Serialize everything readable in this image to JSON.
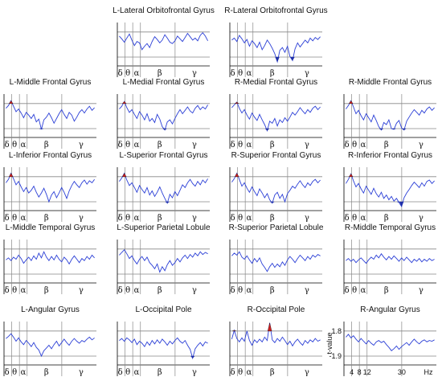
{
  "chart_data": {
    "type": "line",
    "band_labels": [
      "δ",
      "θ",
      "α",
      "β",
      "γ"
    ],
    "bands": [
      {
        "symbol": "δ",
        "x": 1.5
      },
      {
        "symbol": "θ",
        "x": 5.5
      },
      {
        "symbol": "α",
        "x": 10
      },
      {
        "symbol": "β",
        "x": 22
      },
      {
        "symbol": "γ",
        "x": 40
      }
    ],
    "band_boundaries_hz": [
      4,
      8,
      12,
      30
    ],
    "x_unit": "Hz",
    "xlim": [
      0,
      48
    ],
    "ylim": [
      -3.2,
      3.2
    ],
    "reference_lines": [
      1.8,
      -1.9
    ],
    "ylabel": "t-value",
    "ytick_labels": [
      "1.8",
      "-1.9"
    ],
    "xtick_labels": [
      "4",
      "8",
      "12",
      "30",
      "Hz"
    ],
    "colors": {
      "trace": "#2b3fd6",
      "positive": "#cc1f1f",
      "negative": "#1f2fa8",
      "grid": "#888888",
      "frame": "#000000"
    },
    "panels": [
      {
        "id": "l-lat-ofg",
        "title": "L-Lateral Orbitofrontal Gyrus",
        "values": [
          1.2,
          0.8,
          0.3,
          0.9,
          1.5,
          0.6,
          -0.2,
          0.4,
          0.2,
          -0.8,
          -0.3,
          0.1,
          -0.5,
          0.4,
          1.1,
          0.7,
          0.2,
          0.6,
          1.4,
          0.9,
          0.3,
          0.1,
          0.5,
          1.2,
          0.8,
          0.4,
          1.0,
          1.6,
          1.1,
          0.6,
          0.9,
          0.5,
          1.3,
          1.7,
          1.2,
          0.5
        ]
      },
      {
        "id": "r-lat-ofg",
        "title": "R-Lateral Orbitofrontal Gyrus",
        "values": [
          0.6,
          0.9,
          0.4,
          1.3,
          0.8,
          0.2,
          0.7,
          -0.3,
          0.5,
          0.1,
          -0.5,
          0.3,
          -0.8,
          -0.2,
          0.6,
          0.1,
          -0.6,
          -1.4,
          -2.6,
          -0.9,
          -0.5,
          -1.2,
          -0.3,
          -1.8,
          -2.4,
          -0.7,
          0.2,
          -0.4,
          0.1,
          0.6,
          0.2,
          0.9,
          0.5,
          1.0,
          0.7,
          1.1
        ]
      },
      {
        "id": "l-mid-fg",
        "title": "L-Middle Frontal Gyrus",
        "values": [
          1.1,
          1.5,
          2.2,
          1.4,
          0.6,
          1.0,
          0.4,
          -0.3,
          0.5,
          0.1,
          -0.4,
          0.2,
          -0.9,
          -0.5,
          -2.0,
          -0.6,
          -0.2,
          0.4,
          -0.3,
          -1.1,
          -0.4,
          0.3,
          0.9,
          0.2,
          -0.4,
          0.5,
          0.1,
          -0.8,
          -0.2,
          0.5,
          0.9,
          0.4,
          1.0,
          1.4,
          0.8,
          1.2
        ]
      },
      {
        "id": "l-med-fg",
        "title": "L-Medial Frontal Gyrus",
        "values": [
          1.0,
          1.4,
          2.1,
          1.2,
          0.5,
          0.9,
          0.2,
          -0.4,
          0.6,
          0.1,
          -0.6,
          0.3,
          -0.8,
          -0.4,
          -1.0,
          0.2,
          -0.5,
          -1.6,
          -2.1,
          -0.9,
          -0.6,
          -1.2,
          -0.4,
          0.3,
          0.9,
          0.3,
          0.8,
          1.3,
          0.7,
          0.4,
          1.1,
          1.5,
          0.9,
          1.3,
          1.0,
          1.6
        ]
      },
      {
        "id": "r-med-fg",
        "title": "R-Medial Frontal Gyrus",
        "values": [
          1.2,
          1.6,
          2.0,
          1.1,
          0.4,
          0.9,
          0.1,
          -0.5,
          0.4,
          -0.2,
          -0.7,
          0.2,
          -0.6,
          -1.3,
          -2.2,
          -0.8,
          -1.1,
          -0.4,
          -1.5,
          -0.6,
          -1.0,
          -0.3,
          -0.8,
          -0.2,
          0.5,
          0.1,
          0.6,
          1.2,
          0.7,
          0.3,
          0.9,
          0.5,
          1.1,
          1.4,
          0.9,
          1.3
        ]
      },
      {
        "id": "r-mid-fg",
        "title": "R-Middle Frontal Gyrus",
        "values": [
          1.0,
          1.5,
          2.2,
          1.3,
          0.3,
          0.8,
          0.0,
          -0.6,
          0.3,
          -0.3,
          -0.9,
          0.1,
          -0.7,
          -1.6,
          -2.1,
          -1.0,
          -1.3,
          -0.6,
          -1.9,
          -2.0,
          -1.1,
          -0.7,
          -1.8,
          -2.1,
          -0.8,
          -0.2,
          0.4,
          0.9,
          0.5,
          0.1,
          0.8,
          0.4,
          1.0,
          1.3,
          0.8,
          1.2
        ]
      },
      {
        "id": "l-inf-fg",
        "title": "L-Inferior Frontal Gyrus",
        "values": [
          0.9,
          1.4,
          2.3,
          1.5,
          0.6,
          1.1,
          0.3,
          -0.4,
          0.2,
          -0.6,
          -0.2,
          0.4,
          -0.5,
          -1.2,
          -0.6,
          0.1,
          -0.8,
          -1.9,
          -0.9,
          -0.4,
          -1.3,
          -0.6,
          0.2,
          -0.5,
          -1.4,
          -0.3,
          0.5,
          1.1,
          0.6,
          0.2,
          0.9,
          1.3,
          0.7,
          1.2,
          0.9,
          1.4
        ]
      },
      {
        "id": "l-sup-fg",
        "title": "L-Superior Frontal Gyrus",
        "values": [
          1.1,
          1.6,
          2.3,
          1.3,
          0.5,
          0.9,
          0.2,
          -0.5,
          0.5,
          -0.1,
          -0.6,
          0.2,
          -0.9,
          -0.3,
          -1.1,
          -0.5,
          0.3,
          -0.6,
          -1.4,
          -2.1,
          -0.8,
          -1.3,
          -0.4,
          -1.0,
          -0.2,
          0.6,
          0.2,
          0.9,
          1.4,
          0.8,
          0.4,
          1.1,
          0.6,
          1.3,
          0.9,
          1.5
        ]
      },
      {
        "id": "r-sup-fg",
        "title": "R-Superior Frontal Gyrus",
        "values": [
          1.0,
          1.5,
          2.3,
          1.4,
          0.4,
          0.9,
          0.1,
          -0.5,
          0.3,
          -0.4,
          -1.0,
          0.0,
          -0.6,
          -1.3,
          -0.7,
          -1.6,
          -2.1,
          -0.9,
          -0.5,
          -1.4,
          -0.8,
          -1.9,
          -0.7,
          -0.2,
          0.4,
          0.1,
          0.7,
          1.2,
          0.6,
          0.2,
          0.9,
          0.5,
          1.1,
          1.4,
          0.9,
          1.3
        ]
      },
      {
        "id": "r-inf-fg",
        "title": "R-Inferior Frontal Gyrus",
        "values": [
          0.8,
          1.4,
          2.2,
          1.2,
          0.3,
          0.8,
          0.0,
          -0.6,
          0.4,
          -0.2,
          -0.8,
          0.1,
          -0.7,
          -1.2,
          -0.5,
          -1.4,
          -0.9,
          -1.6,
          -1.1,
          -1.8,
          -1.4,
          -2.0,
          -2.6,
          -1.3,
          -0.6,
          -0.1,
          0.5,
          1.0,
          0.6,
          0.2,
          0.9,
          0.4,
          1.1,
          1.3,
          0.8,
          1.2
        ]
      },
      {
        "id": "l-mid-tg",
        "title": "L-Middle Temporal Gyrus",
        "values": [
          0.2,
          0.5,
          0.1,
          0.6,
          0.3,
          0.9,
          0.4,
          -0.3,
          0.2,
          0.6,
          0.1,
          0.8,
          0.3,
          1.2,
          0.5,
          1.4,
          0.6,
          0.1,
          0.7,
          0.2,
          0.9,
          0.3,
          -0.1,
          0.6,
          0.2,
          -0.4,
          0.3,
          0.8,
          0.3,
          -0.2,
          0.4,
          0.1,
          0.7,
          0.3,
          0.9,
          0.5
        ]
      },
      {
        "id": "l-sup-pl",
        "title": "L-Superior Parietal Lobule",
        "values": [
          0.9,
          1.3,
          1.7,
          1.1,
          0.4,
          0.8,
          0.1,
          -0.4,
          0.3,
          0.7,
          0.1,
          0.6,
          -0.2,
          -0.6,
          -1.1,
          -0.4,
          -1.6,
          -0.8,
          -1.4,
          -0.5,
          0.1,
          -0.6,
          -0.2,
          0.4,
          -0.1,
          0.5,
          0.9,
          0.4,
          1.0,
          0.6,
          1.2,
          0.8,
          1.4,
          1.0,
          1.3,
          1.1
        ]
      },
      {
        "id": "r-sup-pl",
        "title": "R-Superior Parietal Lobule",
        "values": [
          0.8,
          1.2,
          0.9,
          1.4,
          0.6,
          0.3,
          0.8,
          0.2,
          -0.3,
          0.4,
          -0.1,
          0.5,
          -0.4,
          -0.9,
          -1.5,
          -0.8,
          -0.3,
          -0.9,
          -0.4,
          -0.8,
          -0.1,
          -0.6,
          0.2,
          0.7,
          0.3,
          -0.2,
          0.4,
          0.9,
          0.5,
          0.1,
          0.7,
          0.3,
          0.9,
          0.6,
          1.0,
          0.8
        ]
      },
      {
        "id": "r-mid-tg",
        "title": "R-Middle Temporal Gyrus",
        "values": [
          0.1,
          0.4,
          0.0,
          0.3,
          -0.2,
          0.2,
          0.5,
          0.1,
          -0.3,
          0.2,
          0.6,
          0.3,
          0.9,
          0.5,
          1.1,
          0.6,
          0.2,
          0.7,
          0.3,
          0.8,
          0.4,
          0.0,
          0.5,
          0.1,
          0.6,
          0.2,
          -0.2,
          0.3,
          0.0,
          0.4,
          -0.1,
          0.3,
          0.0,
          0.4,
          0.1,
          0.3
        ]
      },
      {
        "id": "l-ang-g",
        "title": "L-Angular Gyrus",
        "values": [
          0.7,
          1.0,
          1.4,
          0.9,
          0.3,
          0.8,
          0.2,
          -0.2,
          0.4,
          0.0,
          -0.5,
          0.1,
          -0.6,
          -1.0,
          -1.9,
          -1.1,
          -0.7,
          -0.3,
          -0.8,
          -0.2,
          0.3,
          -0.4,
          0.1,
          0.6,
          0.1,
          -0.3,
          0.3,
          0.7,
          0.3,
          0.0,
          0.4,
          0.2,
          0.6,
          0.9,
          0.5,
          0.8
        ]
      },
      {
        "id": "l-occ-p",
        "title": "L-Occipital Pole",
        "values": [
          0.4,
          0.7,
          0.3,
          0.8,
          0.5,
          0.1,
          0.6,
          -0.2,
          0.3,
          0.0,
          -0.5,
          0.2,
          -0.3,
          0.4,
          -0.1,
          0.5,
          0.0,
          0.6,
          0.2,
          -0.3,
          0.3,
          -0.1,
          0.4,
          0.8,
          0.3,
          0.0,
          0.4,
          -0.3,
          -0.9,
          -2.2,
          -0.8,
          -0.3,
          0.1,
          -0.4,
          0.2,
          0.0
        ]
      },
      {
        "id": "r-occ-p",
        "title": "R-Occipital Pole",
        "values": [
          0.6,
          1.9,
          0.7,
          0.2,
          0.8,
          0.3,
          1.8,
          0.4,
          -0.3,
          0.5,
          0.1,
          0.6,
          0.2,
          0.9,
          0.4,
          3.0,
          0.5,
          0.1,
          0.7,
          0.3,
          0.9,
          0.4,
          -0.2,
          0.3,
          -0.4,
          0.2,
          0.6,
          0.1,
          -0.3,
          0.4,
          0.0,
          0.5,
          0.2,
          0.7,
          0.3,
          0.5
        ]
      },
      {
        "id": "r-ang-g",
        "title": "R-Angular Gyrus",
        "values": [
          0.9,
          1.3,
          0.8,
          1.1,
          0.6,
          0.2,
          0.7,
          0.3,
          -0.1,
          0.4,
          0.0,
          -0.3,
          0.2,
          0.4,
          0.1,
          0.3,
          -0.2,
          -0.6,
          -1.1,
          -0.8,
          -0.4,
          -0.9,
          -0.5,
          -0.2,
          0.1,
          -0.3,
          0.2,
          0.6,
          0.2,
          -0.1,
          0.3,
          0.5,
          0.2,
          0.4,
          0.3,
          0.5
        ]
      }
    ]
  }
}
